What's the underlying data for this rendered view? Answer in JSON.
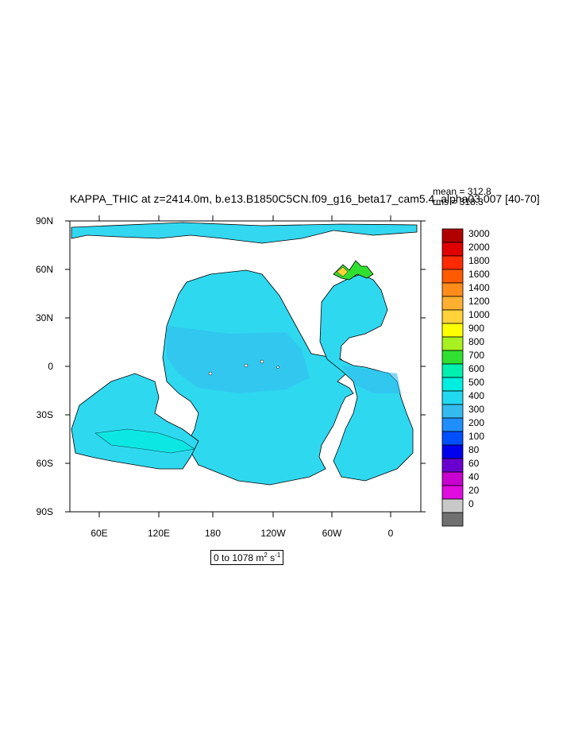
{
  "title": "KAPPA_THIC at z=2414.0m, b.e13.B1850C5CN.f09_g16_beta17_cam5.4_alpha03.007 [40-70]",
  "stats": {
    "mean": "mean = 312.8",
    "rms": "rms = 318.3"
  },
  "lat_ticks": [
    "90N",
    "60N",
    "30N",
    "0",
    "30S",
    "60S",
    "90S"
  ],
  "lon_ticks": [
    "60E",
    "120E",
    "180",
    "120W",
    "60W",
    "0"
  ],
  "range": {
    "prefix": "0 to 1078 m",
    "exp": "2",
    "mid": " s",
    "exp2": "-1"
  },
  "colorbar": {
    "labels": [
      "3000",
      "2000",
      "1800",
      "1600",
      "1400",
      "1200",
      "1000",
      "900",
      "800",
      "700",
      "600",
      "500",
      "400",
      "300",
      "200",
      "100",
      "80",
      "60",
      "40",
      "20",
      "0"
    ],
    "colors": [
      "#b00000",
      "#e00000",
      "#ff2a00",
      "#ff5a00",
      "#ff8c1a",
      "#ffb030",
      "#ffd23a",
      "#ffff00",
      "#a8f020",
      "#30e030",
      "#00f0b0",
      "#00eee0",
      "#22d8f0",
      "#33bbee",
      "#1f8fff",
      "#0050ff",
      "#0000ee",
      "#6a00d0",
      "#c800d0",
      "#e00ce0",
      "#c8c8c8",
      "#707070"
    ]
  },
  "chart_data": {
    "type": "heatmap",
    "title": "KAPPA_THIC at z=2414.0m, b.e13.B1850C5CN.f09_g16_beta17_cam5.4_alpha03.007 [40-70]",
    "units": "m^2 s^-1",
    "range": [
      0,
      1078
    ],
    "mean": 312.8,
    "rms": 318.3,
    "lat_range": [
      -90,
      90
    ],
    "lon_range": [
      30,
      390
    ],
    "color_levels": [
      0,
      20,
      40,
      60,
      80,
      100,
      200,
      300,
      400,
      500,
      600,
      700,
      800,
      900,
      1000,
      1200,
      1400,
      1600,
      1800,
      2000,
      3000
    ]
  }
}
